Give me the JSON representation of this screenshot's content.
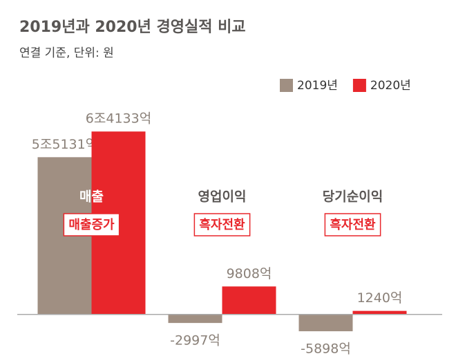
{
  "chart_data": {
    "type": "bar",
    "title": "2019년과 2020년 경영실적 비교",
    "subtitle": "연결 기준, 단위: 원",
    "categories": [
      "매출",
      "영업이익",
      "당기순이익"
    ],
    "annotations": [
      "매출증가",
      "흑자전환",
      "흑자전환"
    ],
    "series": [
      {
        "name": "2019년",
        "color": "#a08f82",
        "values": [
          55131,
          -2997,
          -5898
        ],
        "value_labels": [
          "5조5131억",
          "-2997억",
          "-5898억"
        ]
      },
      {
        "name": "2020년",
        "color": "#e8262b",
        "values": [
          64133,
          9808,
          1240
        ],
        "value_labels": [
          "6조4133억",
          "9808억",
          "1240억"
        ]
      }
    ],
    "ylim": [
      -10000,
      70000
    ]
  }
}
